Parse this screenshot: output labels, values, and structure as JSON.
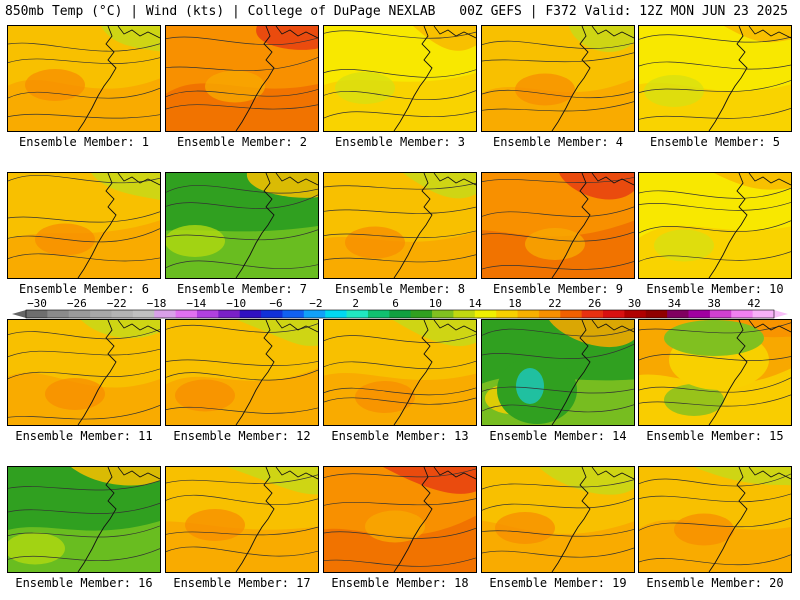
{
  "header": {
    "left_title": "850mb Temp (°C) | Wind (kts) | College of DuPage NEXLAB",
    "right_title": "00Z GEFS | F372 Valid: 12Z MON JUN 23 2025"
  },
  "colorbar": {
    "labels": [
      "−30",
      "−26",
      "−22",
      "−18",
      "−14",
      "−10",
      "−6",
      "−2",
      "2",
      "6",
      "10",
      "14",
      "18",
      "22",
      "26",
      "30",
      "34",
      "38",
      "42"
    ],
    "colors": [
      "#6e6e6e",
      "#8a8a8a",
      "#9a9a9a",
      "#a8a8a8",
      "#b4b4b4",
      "#c0c0c0",
      "#d8a0e8",
      "#e070f0",
      "#b040e0",
      "#7a20c8",
      "#3010c0",
      "#1030d8",
      "#1060f0",
      "#10a0f8",
      "#00d8f0",
      "#20e8c0",
      "#10c070",
      "#10a040",
      "#30a020",
      "#80c020",
      "#c0d810",
      "#f0f000",
      "#f8d000",
      "#f8b000",
      "#f89000",
      "#f06000",
      "#e83010",
      "#d81010",
      "#b00000",
      "#900000",
      "#800060",
      "#a000a0",
      "#d040d0",
      "#f080f0",
      "#f8b0f8"
    ]
  },
  "members": [
    {
      "label": "Ensemble Member: 1",
      "theme": "orange"
    },
    {
      "label": "Ensemble Member: 2",
      "theme": "hot"
    },
    {
      "label": "Ensemble Member: 3",
      "theme": "yellow"
    },
    {
      "label": "Ensemble Member: 4",
      "theme": "orange"
    },
    {
      "label": "Ensemble Member: 5",
      "theme": "yellow"
    },
    {
      "label": "Ensemble Member: 6",
      "theme": "orange"
    },
    {
      "label": "Ensemble Member: 7",
      "theme": "green"
    },
    {
      "label": "Ensemble Member: 8",
      "theme": "orange"
    },
    {
      "label": "Ensemble Member: 9",
      "theme": "hot"
    },
    {
      "label": "Ensemble Member: 10",
      "theme": "yellow"
    },
    {
      "label": "Ensemble Member: 11",
      "theme": "orange"
    },
    {
      "label": "Ensemble Member: 12",
      "theme": "orange"
    },
    {
      "label": "Ensemble Member: 13",
      "theme": "orange"
    },
    {
      "label": "Ensemble Member: 14",
      "theme": "low"
    },
    {
      "label": "Ensemble Member: 15",
      "theme": "high"
    },
    {
      "label": "Ensemble Member: 16",
      "theme": "green"
    },
    {
      "label": "Ensemble Member: 17",
      "theme": "orange"
    },
    {
      "label": "Ensemble Member: 18",
      "theme": "hot"
    },
    {
      "label": "Ensemble Member: 19",
      "theme": "orange"
    },
    {
      "label": "Ensemble Member: 20",
      "theme": "orange"
    }
  ]
}
